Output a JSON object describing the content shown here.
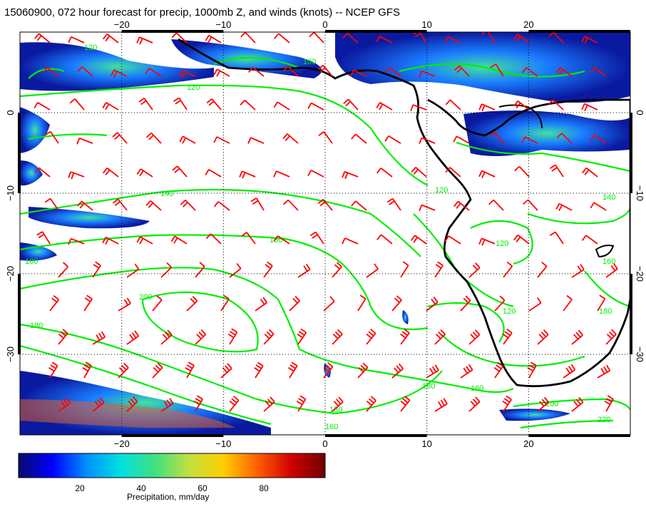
{
  "title": "15060900, 072 hour forecast for precip, 1000mb Z, and winds (knots) -- NCEP GFS",
  "map": {
    "lon_range": [
      -30,
      30
    ],
    "lat_range": [
      -40,
      10
    ],
    "lon_ticks": [
      -20,
      -10,
      0,
      10,
      20
    ],
    "lat_ticks": [
      0,
      -10,
      -20,
      -30
    ],
    "lon_tick_labels": [
      "−20",
      "−10",
      "0",
      "10",
      "20"
    ],
    "lat_tick_labels": [
      "0",
      "−10",
      "−20",
      "−30"
    ],
    "coastline_color": "#000000",
    "contour_color": "#00ee00",
    "wind_barb_color": "#ff0000",
    "contour_labels": [
      "100",
      "120",
      "140",
      "160",
      "180",
      "200",
      "220"
    ]
  },
  "colorbar": {
    "title": "Precipitation, mm/day",
    "range": [
      0,
      100
    ],
    "tick_values": [
      20,
      40,
      60,
      80
    ],
    "tick_labels": [
      "20",
      "40",
      "60",
      "80"
    ],
    "colors": [
      "#0a0a6e",
      "#0000ff",
      "#0090ff",
      "#00e0e0",
      "#40e080",
      "#c0e040",
      "#ffd000",
      "#ff6000",
      "#d00000",
      "#700000"
    ]
  }
}
